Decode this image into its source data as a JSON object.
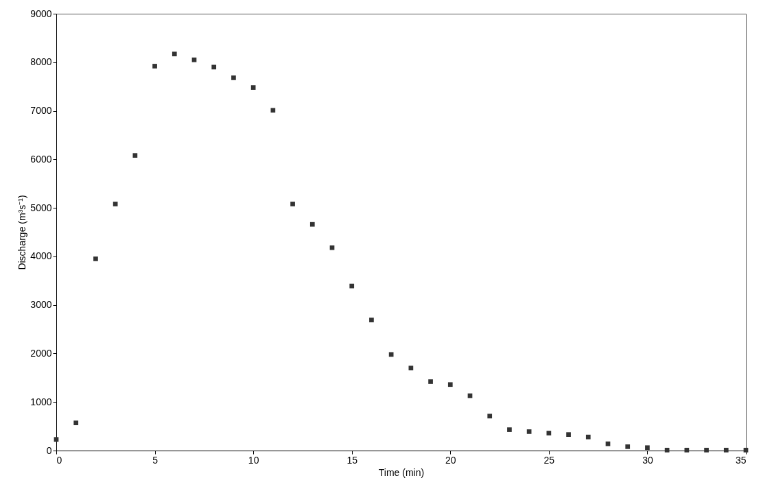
{
  "chart_data": {
    "type": "scatter",
    "xlabel": "Time (min)",
    "ylabel": "Discharge (m³s⁻¹)",
    "x": [
      0,
      1,
      2,
      3,
      4,
      5,
      6,
      7,
      8,
      9,
      10,
      11,
      12,
      13,
      14,
      15,
      16,
      17,
      18,
      19,
      20,
      21,
      22,
      23,
      24,
      25,
      26,
      27,
      28,
      29,
      30,
      31,
      32,
      33,
      34,
      35
    ],
    "series": [
      {
        "color": "#333333",
        "values": [
          230,
          570,
          3950,
          5080,
          6080,
          7920,
          8170,
          8050,
          7900,
          7680,
          7480,
          7010,
          5080,
          4660,
          4180,
          3390,
          2690,
          1980,
          1700,
          1420,
          1360,
          1130,
          710,
          430,
          390,
          360,
          330,
          280,
          140,
          80,
          60,
          10,
          10,
          10,
          10,
          10
        ]
      }
    ],
    "xlim": [
      0,
      35
    ],
    "xticks": [
      0,
      5,
      10,
      15,
      20,
      25,
      30,
      35
    ],
    "ylim": [
      0,
      9000
    ],
    "yticks": [
      0,
      1000,
      2000,
      3000,
      4000,
      5000,
      6000,
      7000,
      8000,
      9000
    ],
    "marker": "square",
    "grid": false
  }
}
